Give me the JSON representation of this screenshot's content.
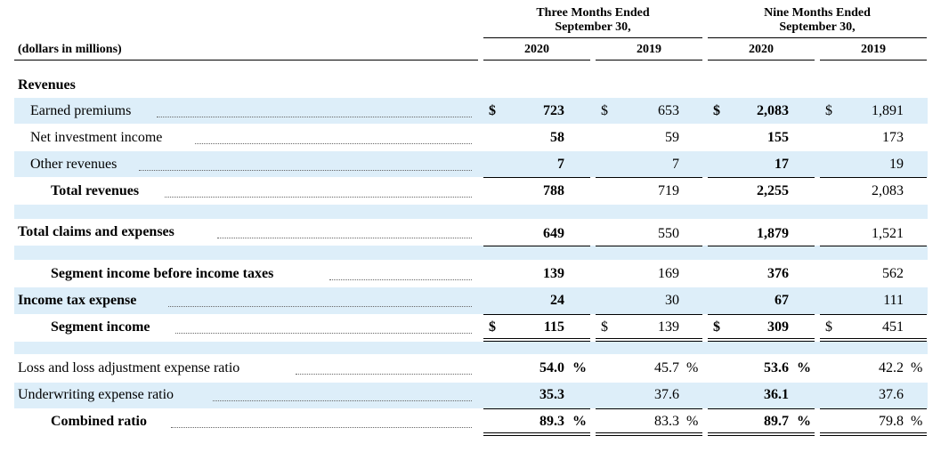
{
  "header": {
    "group1": "Three Months Ended\nSeptember 30,",
    "group2": "Nine Months Ended\nSeptember 30,",
    "units": "(dollars in millions)",
    "years": [
      "2020",
      "2019",
      "2020",
      "2019"
    ]
  },
  "currency_symbol": "$",
  "percent_symbol": "%",
  "band_color": "#ddeef9",
  "rows": {
    "revenues_heading": {
      "label": "Revenues"
    },
    "earned_premiums": {
      "label": "Earned premiums",
      "values": [
        "723",
        "653",
        "2,083",
        "1,891"
      ]
    },
    "net_investment_income": {
      "label": "Net investment income",
      "values": [
        "58",
        "59",
        "155",
        "173"
      ]
    },
    "other_revenues": {
      "label": "Other revenues",
      "values": [
        "7",
        "7",
        "17",
        "19"
      ]
    },
    "total_revenues": {
      "label": "Total revenues",
      "values": [
        "788",
        "719",
        "2,255",
        "2,083"
      ]
    },
    "total_claims": {
      "label": "Total claims and expenses",
      "values": [
        "649",
        "550",
        "1,879",
        "1,521"
      ]
    },
    "segment_income_before_tax": {
      "label": "Segment income before income taxes",
      "values": [
        "139",
        "169",
        "376",
        "562"
      ]
    },
    "income_tax_expense": {
      "label": "Income tax expense",
      "values": [
        "24",
        "30",
        "67",
        "111"
      ]
    },
    "segment_income": {
      "label": "Segment income",
      "values": [
        "115",
        "139",
        "309",
        "451"
      ]
    },
    "loss_ratio": {
      "label": "Loss and loss adjustment expense ratio",
      "values": [
        "54.0",
        "45.7",
        "53.6",
        "42.2"
      ]
    },
    "underwriting_ratio": {
      "label": "Underwriting expense ratio",
      "values": [
        "35.3",
        "37.6",
        "36.1",
        "37.6"
      ]
    },
    "combined_ratio": {
      "label": "Combined ratio",
      "values": [
        "89.3",
        "83.3",
        "89.7",
        "79.8"
      ]
    }
  }
}
